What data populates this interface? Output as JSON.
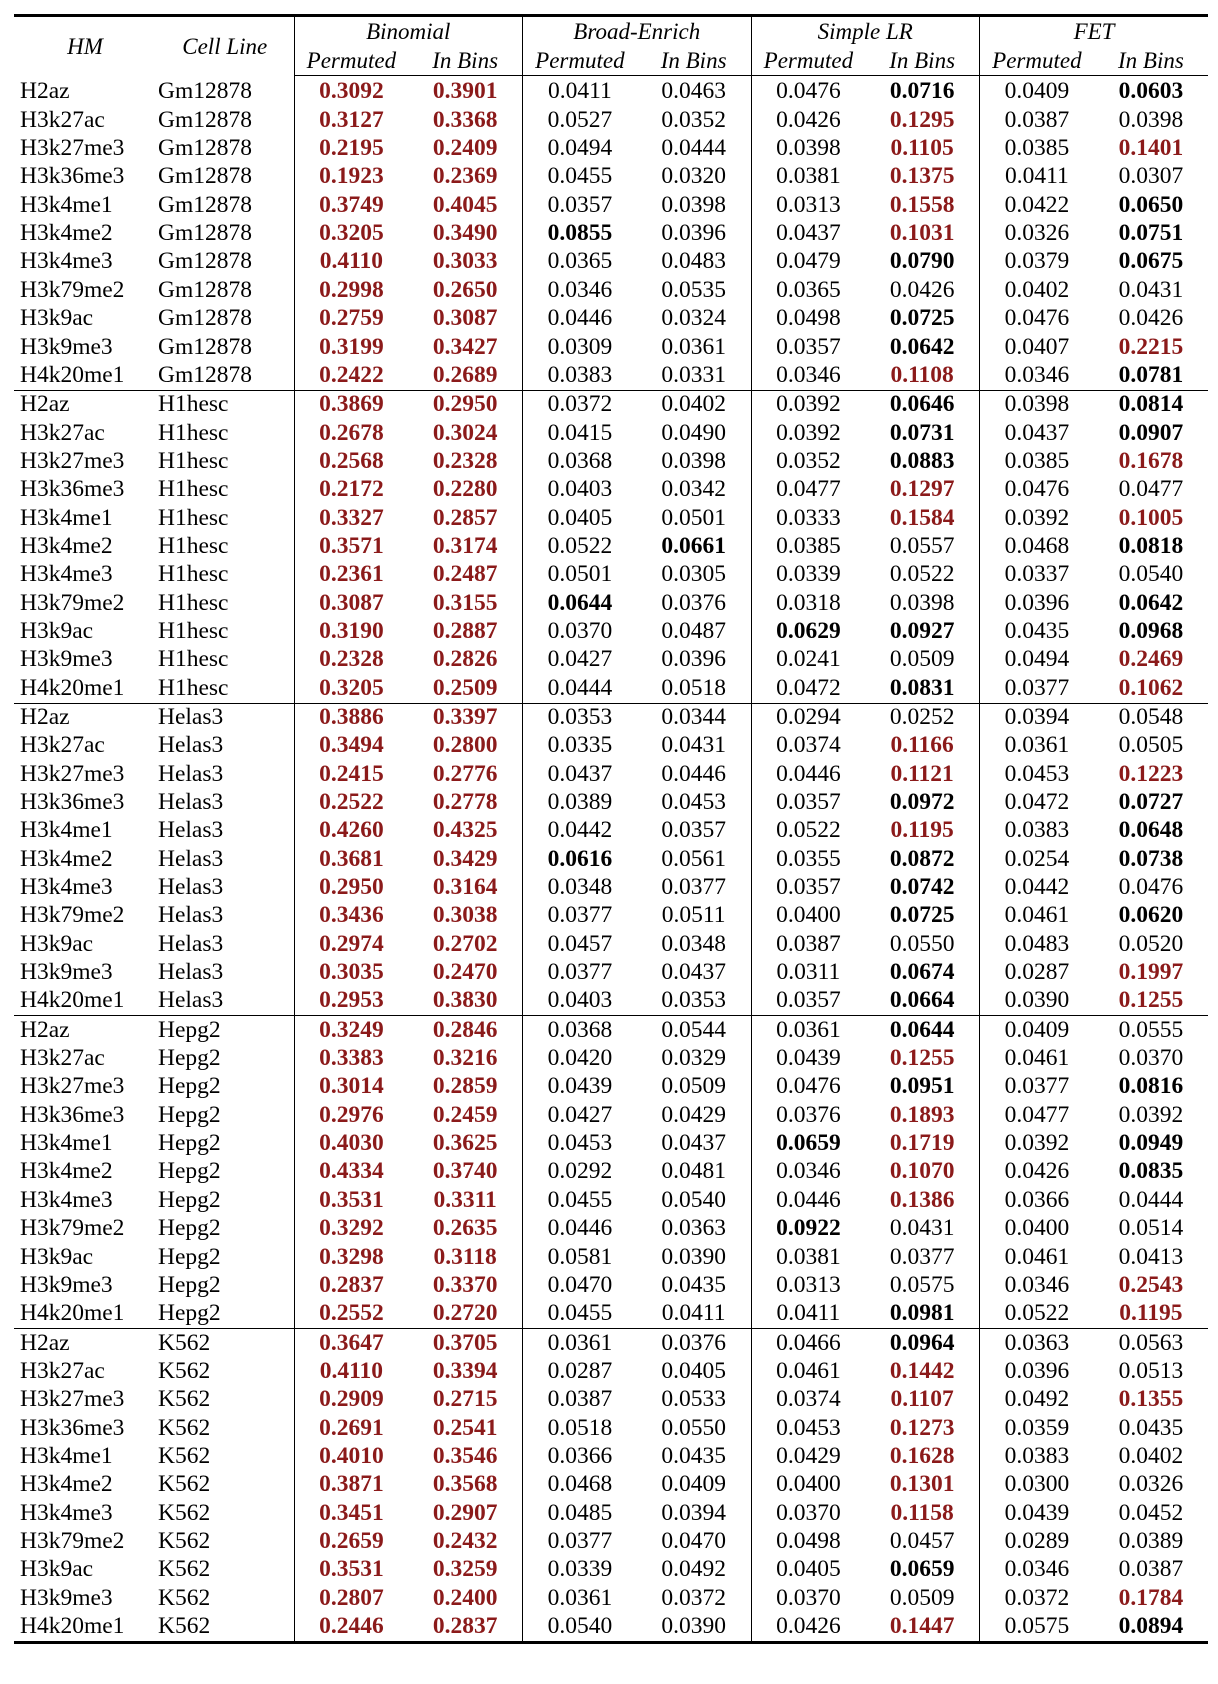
{
  "colors": {
    "significant": "#8b1a1a",
    "text": "#000000"
  },
  "header": {
    "hm": "HM",
    "cell_line": "Cell Line",
    "groups": [
      "Binomial",
      "Broad-Enrich",
      "Simple LR",
      "FET"
    ],
    "sub": [
      "Permuted",
      "In Bins"
    ]
  },
  "cell_lines": [
    "Gm12878",
    "H1hesc",
    "Helas3",
    "Hepg2",
    "K562"
  ],
  "marks": [
    "H2az",
    "H3k27ac",
    "H3k27me3",
    "H3k36me3",
    "H3k4me1",
    "H3k4me2",
    "H3k4me3",
    "H3k79me2",
    "H3k9ac",
    "H3k9me3",
    "H4k20me1"
  ],
  "legend_style": {
    "r": "red bold (significant)",
    "b": "bold",
    "n": "normal"
  },
  "values": [
    [
      "0.3092",
      "0.3901",
      "0.0411",
      "0.0463",
      "0.0476",
      "0.0716",
      "0.0409",
      "0.0603"
    ],
    [
      "0.3127",
      "0.3368",
      "0.0527",
      "0.0352",
      "0.0426",
      "0.1295",
      "0.0387",
      "0.0398"
    ],
    [
      "0.2195",
      "0.2409",
      "0.0494",
      "0.0444",
      "0.0398",
      "0.1105",
      "0.0385",
      "0.1401"
    ],
    [
      "0.1923",
      "0.2369",
      "0.0455",
      "0.0320",
      "0.0381",
      "0.1375",
      "0.0411",
      "0.0307"
    ],
    [
      "0.3749",
      "0.4045",
      "0.0357",
      "0.0398",
      "0.0313",
      "0.1558",
      "0.0422",
      "0.0650"
    ],
    [
      "0.3205",
      "0.3490",
      "0.0855",
      "0.0396",
      "0.0437",
      "0.1031",
      "0.0326",
      "0.0751"
    ],
    [
      "0.4110",
      "0.3033",
      "0.0365",
      "0.0483",
      "0.0479",
      "0.0790",
      "0.0379",
      "0.0675"
    ],
    [
      "0.2998",
      "0.2650",
      "0.0346",
      "0.0535",
      "0.0365",
      "0.0426",
      "0.0402",
      "0.0431"
    ],
    [
      "0.2759",
      "0.3087",
      "0.0446",
      "0.0324",
      "0.0498",
      "0.0725",
      "0.0476",
      "0.0426"
    ],
    [
      "0.3199",
      "0.3427",
      "0.0309",
      "0.0361",
      "0.0357",
      "0.0642",
      "0.0407",
      "0.2215"
    ],
    [
      "0.2422",
      "0.2689",
      "0.0383",
      "0.0331",
      "0.0346",
      "0.1108",
      "0.0346",
      "0.0781"
    ],
    [
      "0.3869",
      "0.2950",
      "0.0372",
      "0.0402",
      "0.0392",
      "0.0646",
      "0.0398",
      "0.0814"
    ],
    [
      "0.2678",
      "0.3024",
      "0.0415",
      "0.0490",
      "0.0392",
      "0.0731",
      "0.0437",
      "0.0907"
    ],
    [
      "0.2568",
      "0.2328",
      "0.0368",
      "0.0398",
      "0.0352",
      "0.0883",
      "0.0385",
      "0.1678"
    ],
    [
      "0.2172",
      "0.2280",
      "0.0403",
      "0.0342",
      "0.0477",
      "0.1297",
      "0.0476",
      "0.0477"
    ],
    [
      "0.3327",
      "0.2857",
      "0.0405",
      "0.0501",
      "0.0333",
      "0.1584",
      "0.0392",
      "0.1005"
    ],
    [
      "0.3571",
      "0.3174",
      "0.0522",
      "0.0661",
      "0.0385",
      "0.0557",
      "0.0468",
      "0.0818"
    ],
    [
      "0.2361",
      "0.2487",
      "0.0501",
      "0.0305",
      "0.0339",
      "0.0522",
      "0.0337",
      "0.0540"
    ],
    [
      "0.3087",
      "0.3155",
      "0.0644",
      "0.0376",
      "0.0318",
      "0.0398",
      "0.0396",
      "0.0642"
    ],
    [
      "0.3190",
      "0.2887",
      "0.0370",
      "0.0487",
      "0.0629",
      "0.0927",
      "0.0435",
      "0.0968"
    ],
    [
      "0.2328",
      "0.2826",
      "0.0427",
      "0.0396",
      "0.0241",
      "0.0509",
      "0.0494",
      "0.2469"
    ],
    [
      "0.3205",
      "0.2509",
      "0.0444",
      "0.0518",
      "0.0472",
      "0.0831",
      "0.0377",
      "0.1062"
    ],
    [
      "0.3886",
      "0.3397",
      "0.0353",
      "0.0344",
      "0.0294",
      "0.0252",
      "0.0394",
      "0.0548"
    ],
    [
      "0.3494",
      "0.2800",
      "0.0335",
      "0.0431",
      "0.0374",
      "0.1166",
      "0.0361",
      "0.0505"
    ],
    [
      "0.2415",
      "0.2776",
      "0.0437",
      "0.0446",
      "0.0446",
      "0.1121",
      "0.0453",
      "0.1223"
    ],
    [
      "0.2522",
      "0.2778",
      "0.0389",
      "0.0453",
      "0.0357",
      "0.0972",
      "0.0472",
      "0.0727"
    ],
    [
      "0.4260",
      "0.4325",
      "0.0442",
      "0.0357",
      "0.0522",
      "0.1195",
      "0.0383",
      "0.0648"
    ],
    [
      "0.3681",
      "0.3429",
      "0.0616",
      "0.0561",
      "0.0355",
      "0.0872",
      "0.0254",
      "0.0738"
    ],
    [
      "0.2950",
      "0.3164",
      "0.0348",
      "0.0377",
      "0.0357",
      "0.0742",
      "0.0442",
      "0.0476"
    ],
    [
      "0.3436",
      "0.3038",
      "0.0377",
      "0.0511",
      "0.0400",
      "0.0725",
      "0.0461",
      "0.0620"
    ],
    [
      "0.2974",
      "0.2702",
      "0.0457",
      "0.0348",
      "0.0387",
      "0.0550",
      "0.0483",
      "0.0520"
    ],
    [
      "0.3035",
      "0.2470",
      "0.0377",
      "0.0437",
      "0.0311",
      "0.0674",
      "0.0287",
      "0.1997"
    ],
    [
      "0.2953",
      "0.3830",
      "0.0403",
      "0.0353",
      "0.0357",
      "0.0664",
      "0.0390",
      "0.1255"
    ],
    [
      "0.3249",
      "0.2846",
      "0.0368",
      "0.0544",
      "0.0361",
      "0.0644",
      "0.0409",
      "0.0555"
    ],
    [
      "0.3383",
      "0.3216",
      "0.0420",
      "0.0329",
      "0.0439",
      "0.1255",
      "0.0461",
      "0.0370"
    ],
    [
      "0.3014",
      "0.2859",
      "0.0439",
      "0.0509",
      "0.0476",
      "0.0951",
      "0.0377",
      "0.0816"
    ],
    [
      "0.2976",
      "0.2459",
      "0.0427",
      "0.0429",
      "0.0376",
      "0.1893",
      "0.0477",
      "0.0392"
    ],
    [
      "0.4030",
      "0.3625",
      "0.0453",
      "0.0437",
      "0.0659",
      "0.1719",
      "0.0392",
      "0.0949"
    ],
    [
      "0.4334",
      "0.3740",
      "0.0292",
      "0.0481",
      "0.0346",
      "0.1070",
      "0.0426",
      "0.0835"
    ],
    [
      "0.3531",
      "0.3311",
      "0.0455",
      "0.0540",
      "0.0446",
      "0.1386",
      "0.0366",
      "0.0444"
    ],
    [
      "0.3292",
      "0.2635",
      "0.0446",
      "0.0363",
      "0.0922",
      "0.0431",
      "0.0400",
      "0.0514"
    ],
    [
      "0.3298",
      "0.3118",
      "0.0581",
      "0.0390",
      "0.0381",
      "0.0377",
      "0.0461",
      "0.0413"
    ],
    [
      "0.2837",
      "0.3370",
      "0.0470",
      "0.0435",
      "0.0313",
      "0.0575",
      "0.0346",
      "0.2543"
    ],
    [
      "0.2552",
      "0.2720",
      "0.0455",
      "0.0411",
      "0.0411",
      "0.0981",
      "0.0522",
      "0.1195"
    ],
    [
      "0.3647",
      "0.3705",
      "0.0361",
      "0.0376",
      "0.0466",
      "0.0964",
      "0.0363",
      "0.0563"
    ],
    [
      "0.4110",
      "0.3394",
      "0.0287",
      "0.0405",
      "0.0461",
      "0.1442",
      "0.0396",
      "0.0513"
    ],
    [
      "0.2909",
      "0.2715",
      "0.0387",
      "0.0533",
      "0.0374",
      "0.1107",
      "0.0492",
      "0.1355"
    ],
    [
      "0.2691",
      "0.2541",
      "0.0518",
      "0.0550",
      "0.0453",
      "0.1273",
      "0.0359",
      "0.0435"
    ],
    [
      "0.4010",
      "0.3546",
      "0.0366",
      "0.0435",
      "0.0429",
      "0.1628",
      "0.0383",
      "0.0402"
    ],
    [
      "0.3871",
      "0.3568",
      "0.0468",
      "0.0409",
      "0.0400",
      "0.1301",
      "0.0300",
      "0.0326"
    ],
    [
      "0.3451",
      "0.2907",
      "0.0485",
      "0.0394",
      "0.0370",
      "0.1158",
      "0.0439",
      "0.0452"
    ],
    [
      "0.2659",
      "0.2432",
      "0.0377",
      "0.0470",
      "0.0498",
      "0.0457",
      "0.0289",
      "0.0389"
    ],
    [
      "0.3531",
      "0.3259",
      "0.0339",
      "0.0492",
      "0.0405",
      "0.0659",
      "0.0346",
      "0.0387"
    ],
    [
      "0.2807",
      "0.2400",
      "0.0361",
      "0.0372",
      "0.0370",
      "0.0509",
      "0.0372",
      "0.1784"
    ],
    [
      "0.2446",
      "0.2837",
      "0.0540",
      "0.0390",
      "0.0426",
      "0.1447",
      "0.0575",
      "0.0894"
    ]
  ],
  "styles": [
    "rrnnnbnb",
    "rrnnnrnn",
    "rrnnnrnr",
    "rrnnnrnn",
    "rrnnnrnb",
    "rrbnnrnb",
    "rrnnnbnb",
    "rrnnnnnn",
    "rrnnnbnn",
    "rrnnnbnr",
    "rrnnnrnb",
    "rrnnnbnb",
    "rrnnnbnb",
    "rrnnnbnr",
    "rrnnnrnn",
    "rrnnnrnr",
    "rrnbnnnb",
    "rrnnnnnn",
    "rrbnnnnb",
    "rrnnbbnb",
    "rrnnnnnr",
    "rrnnnbnr",
    "rrnnnnnn",
    "rrnnnrnn",
    "rrnnnrnr",
    "rrnnnbnb",
    "rrnnnrnb",
    "rrbnnbnb",
    "rrnnnbnn",
    "rrnnnbnb",
    "rrnnnnnn",
    "rrnnnbnr",
    "rrnnnbnr",
    "rrnnnbnn",
    "rrnnnrnn",
    "rrnnnbnb",
    "rrnnnrnn",
    "rrnnbrnb",
    "rrnnnrnb",
    "rrnnnrnn",
    "rrnnbnnn",
    "rrnnnnnn",
    "rrnnnnnr",
    "rrnnnbnr",
    "rrnnnbnn",
    "rrnnnrnn",
    "rrnnnrnr",
    "rrnnnrnn",
    "rrnnnrnn",
    "rrnnnrnn",
    "rrnnnrnn",
    "rrnnnnnn",
    "rrnnnbnn",
    "rrnnnnnr",
    "rrnnnrnb"
  ]
}
